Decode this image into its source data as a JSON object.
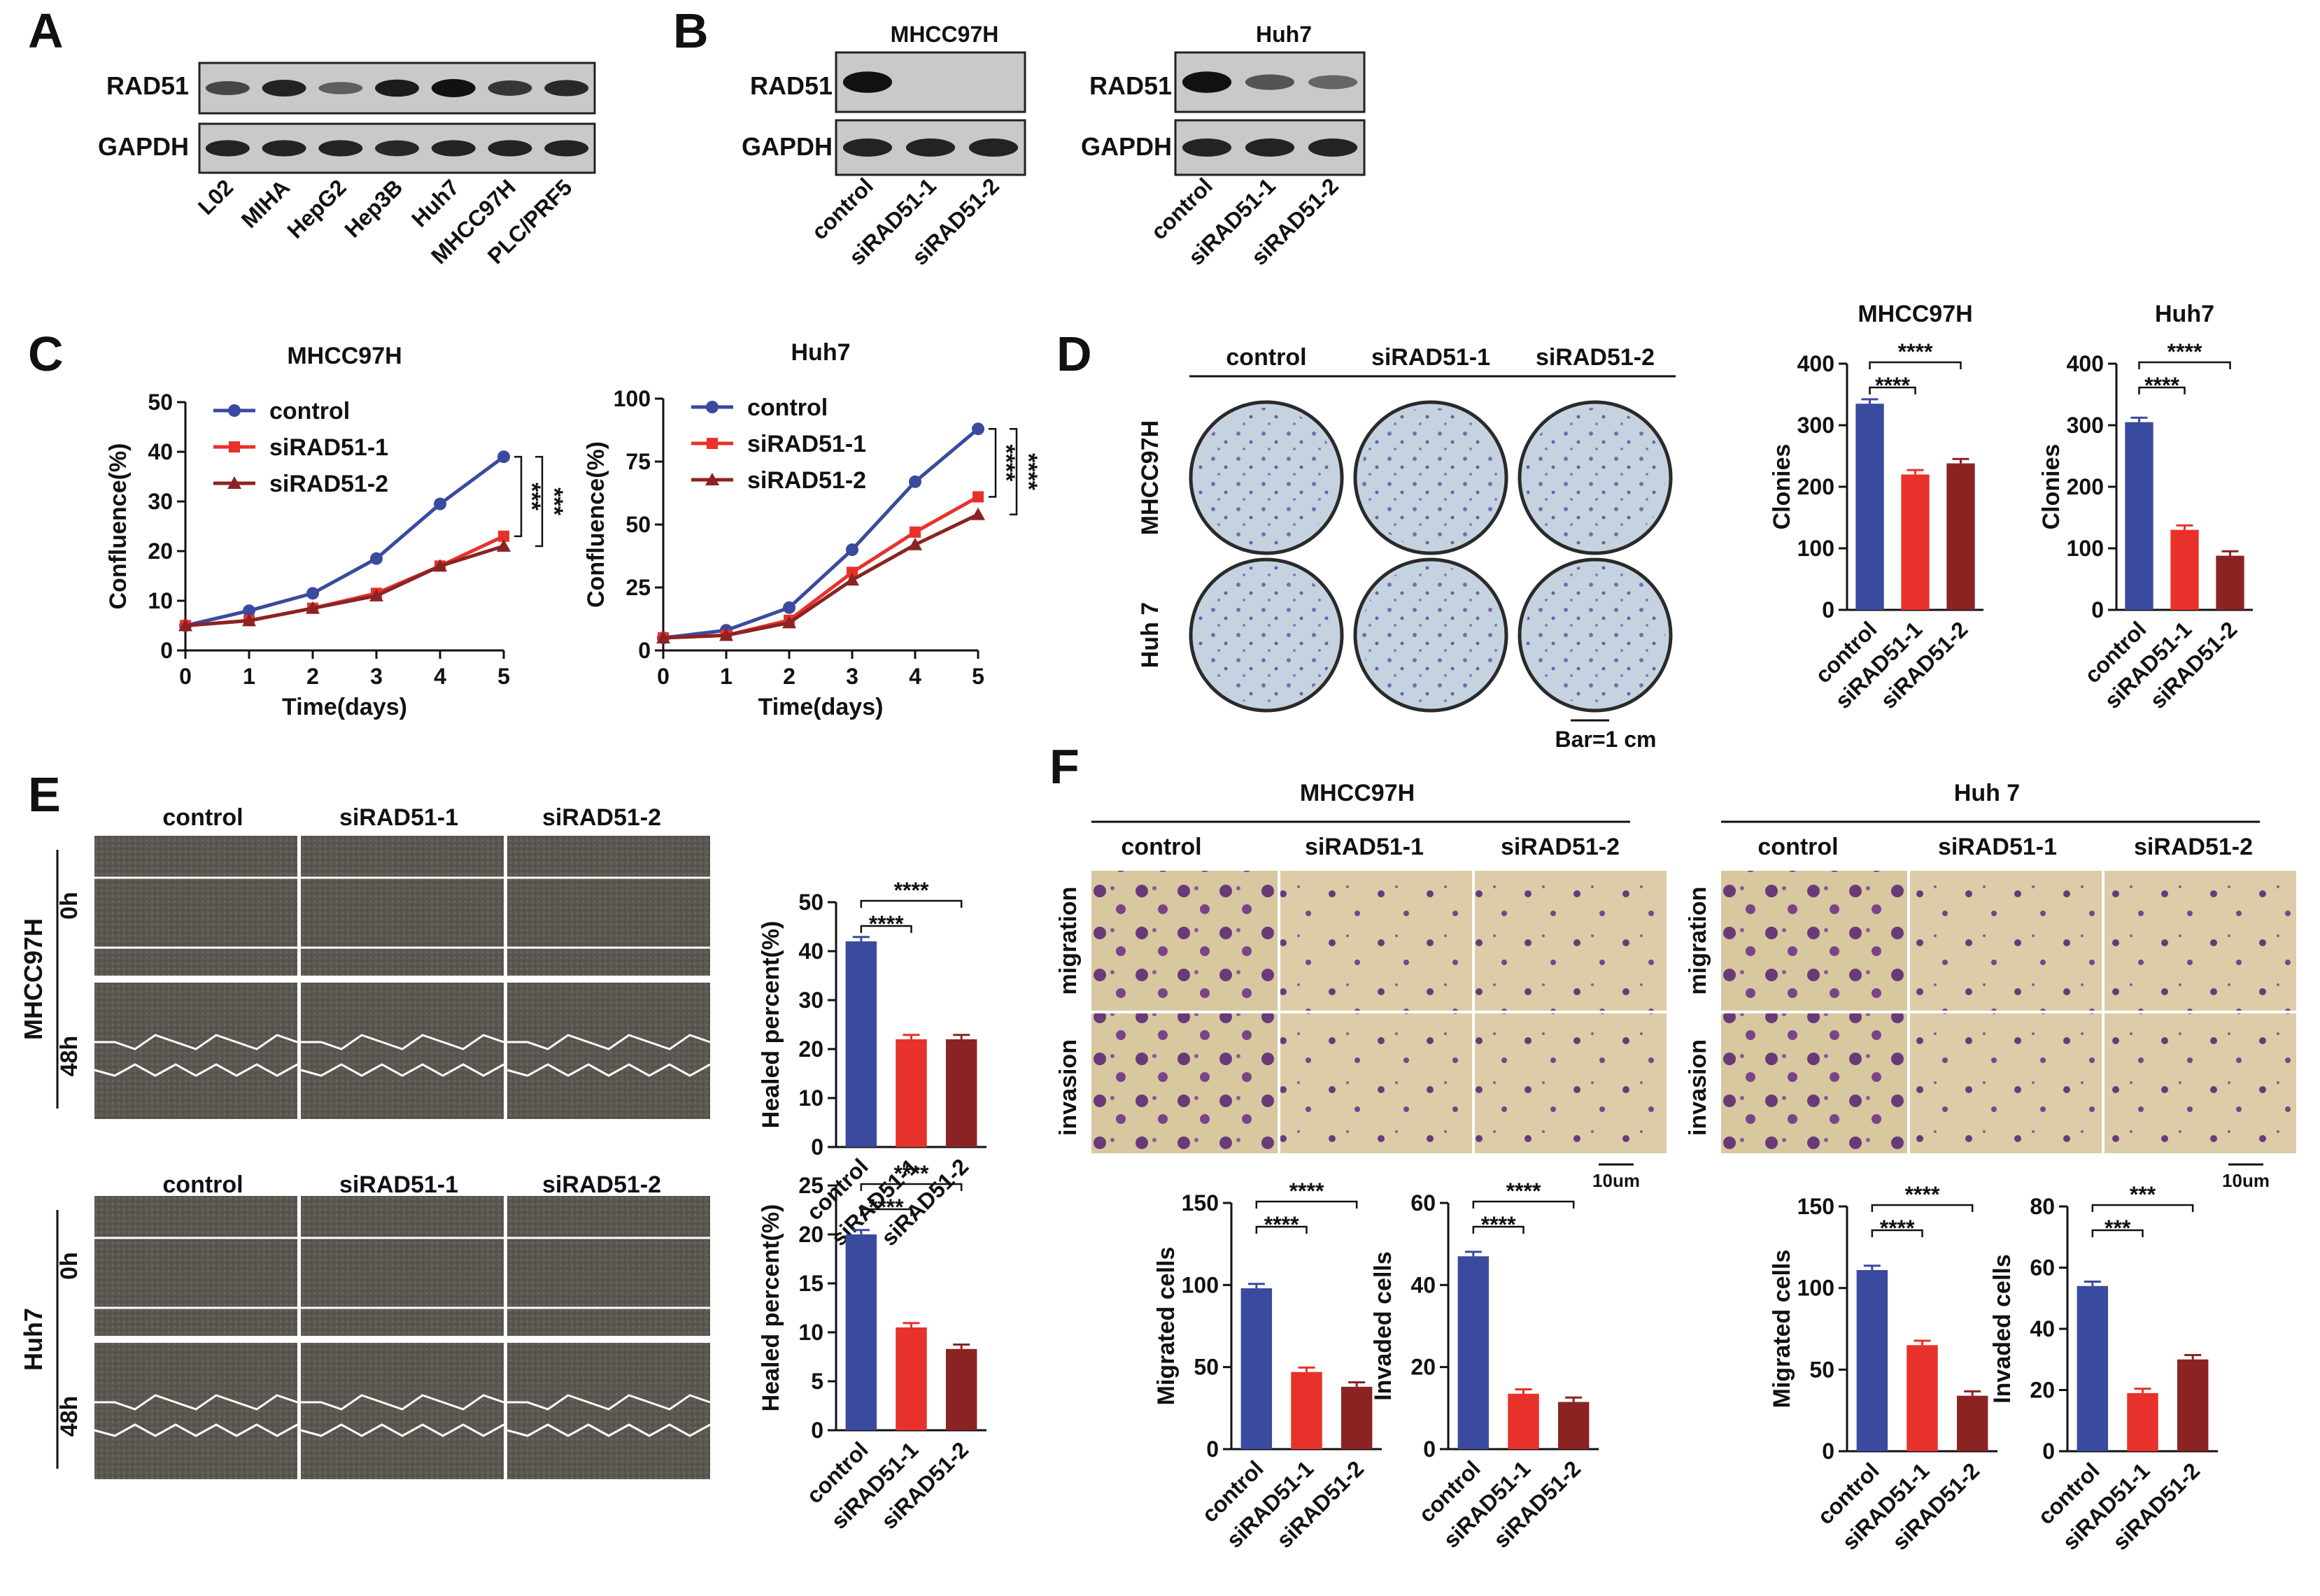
{
  "panels": {
    "A": "A",
    "B": "B",
    "C": "C",
    "D": "D",
    "E": "E",
    "F": "F"
  },
  "colors": {
    "control": "#3a4a9e",
    "s1": "#e8312a",
    "s2": "#8b2323"
  },
  "A": {
    "labels": [
      "RAD51",
      "GAPDH"
    ],
    "lanes": [
      "L02",
      "MIHA",
      "HepG2",
      "Hep3B",
      "Huh7",
      "MHCC97H",
      "PLC/PRF5"
    ],
    "rad51_intensity": [
      0.55,
      0.85,
      0.35,
      0.9,
      1.0,
      0.7,
      0.8
    ]
  },
  "B": {
    "left_title": "MHCC97H",
    "right_title": "Huh7",
    "labels": [
      "RAD51",
      "GAPDH"
    ],
    "lanes": [
      "control",
      "siRAD51-1",
      "siRAD51-2"
    ],
    "left_rad51_intensity": [
      1.0,
      0.0,
      0.0
    ],
    "right_rad51_intensity": [
      1.0,
      0.45,
      0.3
    ]
  },
  "C": {
    "left": {
      "title": "MHCC97H",
      "xlabel": "Time(days)",
      "ylabel": "Confluence(%)",
      "x": [
        0,
        1,
        2,
        3,
        4,
        5
      ],
      "ylim": [
        0,
        50
      ],
      "yticks": [
        0,
        10,
        20,
        30,
        40,
        50
      ],
      "series": [
        {
          "name": "control",
          "values": [
            5,
            8,
            11.5,
            18.5,
            29.5,
            39
          ]
        },
        {
          "name": "siRAD51-1",
          "values": [
            5,
            6,
            8.5,
            11.5,
            17,
            23
          ]
        },
        {
          "name": "siRAD51-2",
          "values": [
            5,
            6,
            8.5,
            11,
            17,
            21
          ]
        }
      ],
      "sig": [
        "***",
        "***"
      ]
    },
    "right": {
      "title": "Huh7",
      "xlabel": "Time(days)",
      "ylabel": "Confluence(%)",
      "x": [
        0,
        1,
        2,
        3,
        4,
        5
      ],
      "ylim": [
        0,
        100
      ],
      "yticks": [
        0,
        25,
        50,
        75,
        100
      ],
      "series": [
        {
          "name": "control",
          "values": [
            5,
            8,
            17,
            40,
            67,
            88
          ]
        },
        {
          "name": "siRAD51-1",
          "values": [
            5,
            6,
            12,
            31,
            47,
            61
          ]
        },
        {
          "name": "siRAD51-2",
          "values": [
            5,
            6,
            11,
            28,
            42,
            54
          ]
        }
      ],
      "sig": [
        "****",
        "****"
      ]
    }
  },
  "D": {
    "cols": [
      "control",
      "siRAD51-1",
      "siRAD51-2"
    ],
    "rows": [
      "MHCC97H",
      "Huh 7"
    ],
    "scale": "Bar=1 cm"
  },
  "chart_data": [
    {
      "id": "D-MHCC97H",
      "type": "bar",
      "title": "MHCC97H",
      "ylabel": "Clonies",
      "categories": [
        "control",
        "siRAD51-1",
        "siRAD51-2"
      ],
      "values": [
        335,
        220,
        238
      ],
      "ylim": [
        0,
        400
      ],
      "yticks": [
        0,
        100,
        200,
        300,
        400
      ],
      "sig": [
        "****",
        "****"
      ]
    },
    {
      "id": "D-Huh7",
      "type": "bar",
      "title": "Huh7",
      "ylabel": "Clonies",
      "categories": [
        "control",
        "siRAD51-1",
        "siRAD51-2"
      ],
      "values": [
        305,
        130,
        88
      ],
      "ylim": [
        0,
        400
      ],
      "yticks": [
        0,
        100,
        200,
        300,
        400
      ],
      "sig": [
        "****",
        "****"
      ]
    },
    {
      "id": "E-MHCC97H",
      "type": "bar",
      "ylabel": "Healed percent(%)",
      "categories": [
        "control",
        "siRAD51-1",
        "siRAD51-2"
      ],
      "values": [
        42,
        22,
        22
      ],
      "ylim": [
        0,
        50
      ],
      "yticks": [
        0,
        10,
        20,
        30,
        40,
        50
      ],
      "sig": [
        "****",
        "****"
      ]
    },
    {
      "id": "E-Huh7",
      "type": "bar",
      "ylabel": "Healed percent(%)",
      "categories": [
        "control",
        "siRAD51-1",
        "siRAD51-2"
      ],
      "values": [
        20,
        10.5,
        8.3
      ],
      "ylim": [
        0,
        25
      ],
      "yticks": [
        0,
        5,
        10,
        15,
        20,
        25
      ],
      "sig": [
        "****",
        "****"
      ]
    },
    {
      "id": "F-MHCC97H-mig",
      "type": "bar",
      "ylabel": "Migrated cells",
      "categories": [
        "control",
        "siRAD51-1",
        "siRAD51-2"
      ],
      "values": [
        98,
        47,
        38
      ],
      "ylim": [
        0,
        150
      ],
      "yticks": [
        0,
        50,
        100,
        150
      ],
      "sig": [
        "****",
        "****"
      ]
    },
    {
      "id": "F-MHCC97H-inv",
      "type": "bar",
      "ylabel": "Invaded cells",
      "categories": [
        "control",
        "siRAD51-1",
        "siRAD51-2"
      ],
      "values": [
        47,
        13.5,
        11.5
      ],
      "ylim": [
        0,
        60
      ],
      "yticks": [
        0,
        20,
        40,
        60
      ],
      "sig": [
        "****",
        "****"
      ]
    },
    {
      "id": "F-Huh7-mig",
      "type": "bar",
      "ylabel": "Migrated cells",
      "categories": [
        "control",
        "siRAD51-1",
        "siRAD51-2"
      ],
      "values": [
        111,
        65,
        34
      ],
      "ylim": [
        0,
        150
      ],
      "yticks": [
        0,
        50,
        100,
        150
      ],
      "sig": [
        "****",
        "****"
      ]
    },
    {
      "id": "F-Huh7-inv",
      "type": "bar",
      "ylabel": "Invaded cells",
      "categories": [
        "control",
        "siRAD51-1",
        "siRAD51-2"
      ],
      "values": [
        54,
        19,
        30
      ],
      "ylim": [
        0,
        80
      ],
      "yticks": [
        0,
        20,
        40,
        60,
        80
      ],
      "sig": [
        "***",
        "***"
      ]
    }
  ],
  "E": {
    "cols": [
      "control",
      "siRAD51-1",
      "siRAD51-2"
    ],
    "rows": [
      "MHCC97H",
      "Huh7"
    ],
    "times": [
      "0h",
      "48h"
    ]
  },
  "F": {
    "left_title": "MHCC97H",
    "right_title": "Huh 7",
    "cols": [
      "control",
      "siRAD51-1",
      "siRAD51-2"
    ],
    "rows": [
      "migration",
      "invasion"
    ],
    "scale": "10um"
  }
}
